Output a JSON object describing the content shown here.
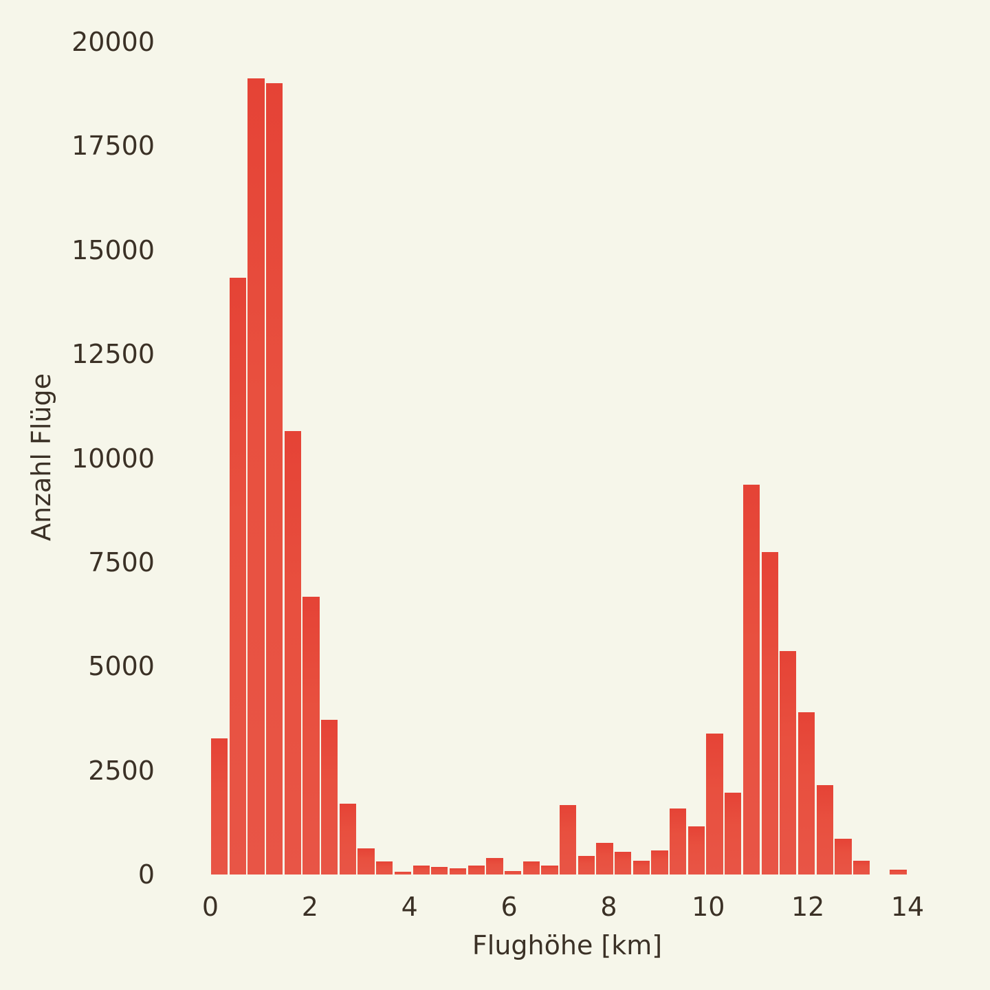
{
  "chart_data": {
    "type": "bar",
    "subtype": "histogram",
    "title": "",
    "xlabel": "Flughöhe [km]",
    "ylabel": "Anzahl Flüge",
    "xlim": [
      0,
      14
    ],
    "ylim": [
      0,
      20000
    ],
    "grid": false,
    "legend": null,
    "x_ticks": [
      0,
      2,
      4,
      6,
      8,
      10,
      12,
      14
    ],
    "y_ticks": [
      0,
      2500,
      5000,
      7500,
      10000,
      12500,
      15000,
      17500,
      20000
    ],
    "bin_width": 0.368,
    "bin_start": 0,
    "bin_centers": [
      0.18,
      0.55,
      0.92,
      1.29,
      1.66,
      2.03,
      2.39,
      2.76,
      3.13,
      3.5,
      3.87,
      4.24,
      4.61,
      4.97,
      5.34,
      5.71,
      6.08,
      6.45,
      6.82,
      7.18,
      7.55,
      7.92,
      8.29,
      8.66,
      9.03,
      9.39,
      9.76,
      10.13,
      10.5,
      10.87,
      11.24,
      11.61,
      11.97,
      12.34,
      12.71,
      13.08,
      13.45,
      13.82
    ],
    "values": [
      3270,
      14330,
      19120,
      19010,
      10650,
      6670,
      3720,
      1700,
      630,
      310,
      70,
      220,
      180,
      150,
      220,
      400,
      80,
      310,
      220,
      1670,
      450,
      760,
      550,
      330,
      580,
      1590,
      1160,
      3390,
      1970,
      9360,
      7750,
      5370,
      3900,
      2150,
      860,
      330,
      0,
      120
    ],
    "bar_color": "#e84e40"
  },
  "axes": {
    "x_tick_labels": [
      "0",
      "2",
      "4",
      "6",
      "8",
      "10",
      "12",
      "14"
    ],
    "y_tick_labels": [
      "0",
      "2500",
      "5000",
      "7500",
      "10000",
      "12500",
      "15000",
      "17500",
      "20000"
    ],
    "xlabel": "Flughöhe [km]",
    "ylabel": "Anzahl Flüge"
  },
  "colors": {
    "background": "#f6f6ea",
    "bar": "#e84e40",
    "text": "#3b3126"
  }
}
